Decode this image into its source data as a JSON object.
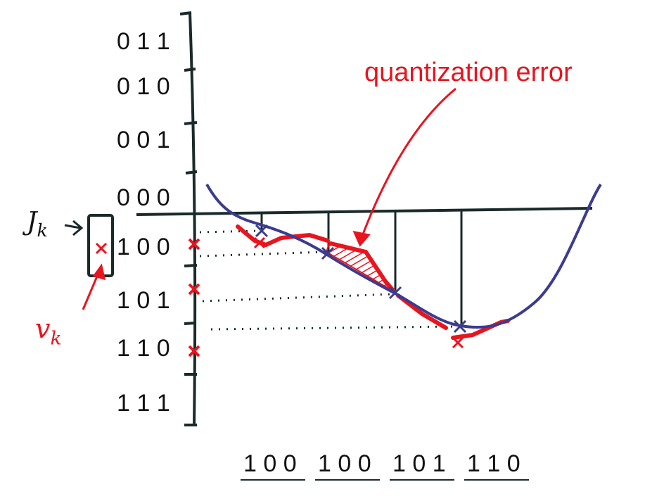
{
  "levels": [
    "0 1 1",
    "0 1 0",
    "0 0 1",
    "0 0 0",
    "1 0 0",
    "1 0 1",
    "1 1 0",
    "1 1 1"
  ],
  "annotation": "quantization error",
  "symbol_J": "J",
  "symbol_J_sub": "k",
  "symbol_v": "v",
  "symbol_v_sub": "k",
  "output_codes": [
    "1 0 0",
    "1 0 0",
    "1 0 1",
    "1 1 0"
  ],
  "colors": {
    "ink": "#111111",
    "red": "#e8141e",
    "blue": "#3b3b8f",
    "dark": "#1a2a2a"
  }
}
